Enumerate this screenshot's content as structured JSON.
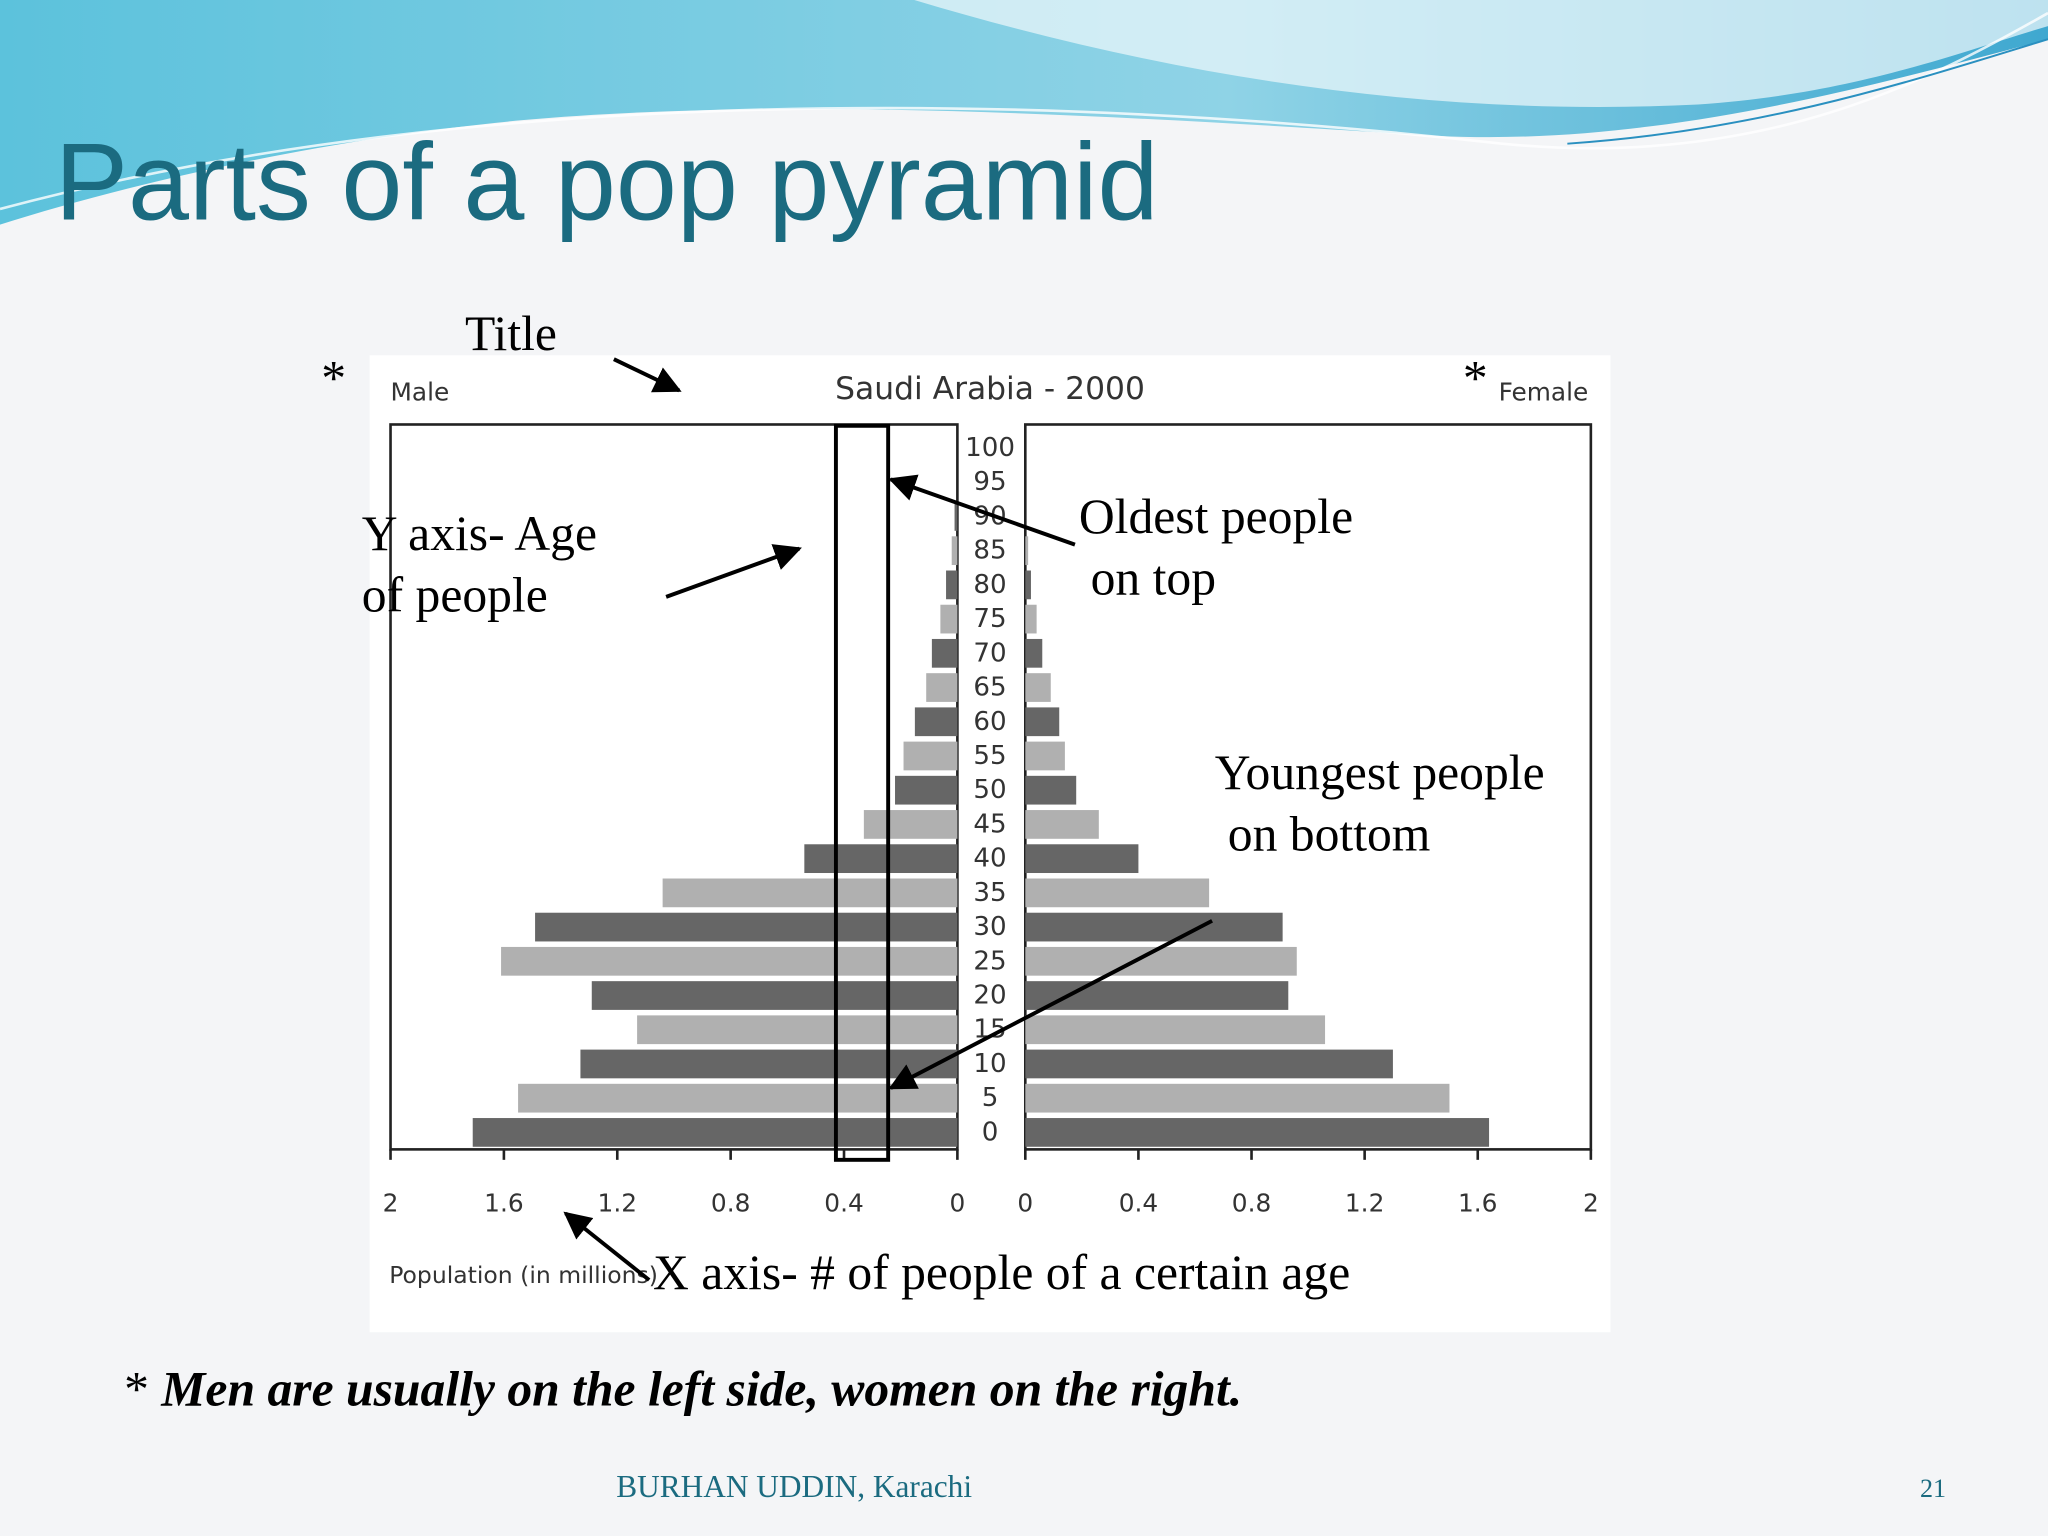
{
  "slide": {
    "title": "Parts of a pop pyramid",
    "annotations": [
      "Title",
      "Y axis- Age",
      "of people",
      "Oldest people",
      "on top",
      "Youngest people",
      "on bottom",
      "X axis- # of people of a certain age"
    ],
    "markers": [
      "*",
      "*"
    ],
    "footnote": {
      "marker": "*",
      "text": "Men are usually on the left side, women on the right."
    },
    "footer": {
      "author": "BURHAN UDDIN, Karachi",
      "page": "21"
    }
  },
  "chart_data": {
    "type": "pyramid",
    "title": "Saudi Arabia - 2000",
    "x_label": "Population (in millions)",
    "categories": [
      "0",
      "5",
      "10",
      "15",
      "20",
      "25",
      "30",
      "35",
      "40",
      "45",
      "50",
      "55",
      "60",
      "65",
      "70",
      "75",
      "80",
      "85",
      "90",
      "95",
      "100"
    ],
    "colors": [
      "#666666",
      "#b0b0b0"
    ],
    "series": [
      {
        "name": "Male",
        "values": [
          1.71,
          1.55,
          1.33,
          1.13,
          1.29,
          1.61,
          1.49,
          1.04,
          0.54,
          0.33,
          0.22,
          0.19,
          0.15,
          0.11,
          0.09,
          0.06,
          0.04,
          0.02,
          0.01,
          0,
          0
        ]
      },
      {
        "name": "Female",
        "values": [
          1.64,
          1.5,
          1.3,
          1.06,
          0.93,
          0.96,
          0.91,
          0.65,
          0.4,
          0.26,
          0.18,
          0.14,
          0.12,
          0.09,
          0.06,
          0.04,
          0.02,
          0.01,
          0,
          0,
          0
        ]
      }
    ],
    "xlim": [
      0,
      2
    ],
    "xticks": [
      0,
      0.4,
      0.8,
      1.2,
      1.6,
      2
    ]
  }
}
